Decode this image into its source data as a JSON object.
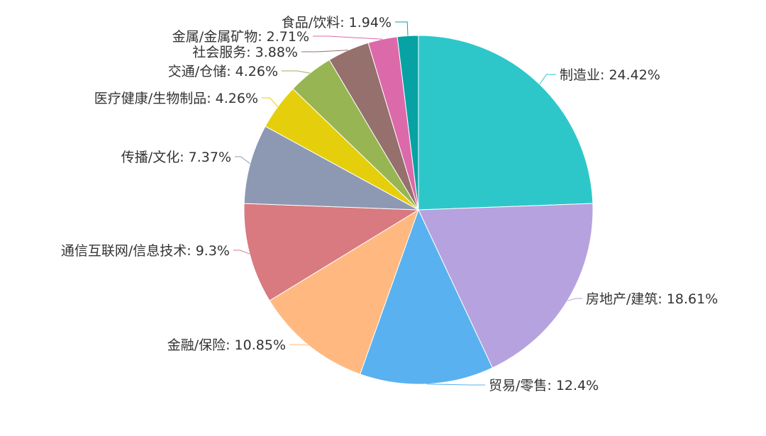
{
  "chart_data": {
    "type": "pie",
    "title": "",
    "slices": [
      {
        "name": "制造业",
        "value": 24.42,
        "label": "制造业: 24.42%",
        "color": "#2ec7c9"
      },
      {
        "name": "房地产/建筑",
        "value": 18.61,
        "label": "房地产/建筑: 18.61%",
        "color": "#b6a2de"
      },
      {
        "name": "贸易/零售",
        "value": 12.4,
        "label": "贸易/零售: 12.4%",
        "color": "#5ab1ef"
      },
      {
        "name": "金融/保险",
        "value": 10.85,
        "label": "金融/保险: 10.85%",
        "color": "#ffb980"
      },
      {
        "name": "通信互联网/信息技术",
        "value": 9.3,
        "label": "通信互联网/信息技术: 9.3%",
        "color": "#d87a80"
      },
      {
        "name": "传播/文化",
        "value": 7.37,
        "label": "传播/文化: 7.37%",
        "color": "#8d98b3"
      },
      {
        "name": "医疗健康/生物制品",
        "value": 4.26,
        "label": "医疗健康/生物制品: 4.26%",
        "color": "#e5cf0d"
      },
      {
        "name": "交通/仓储",
        "value": 4.26,
        "label": "交通/仓储: 4.26%",
        "color": "#97b552"
      },
      {
        "name": "社会服务",
        "value": 3.88,
        "label": "社会服务: 3.88%",
        "color": "#95706d"
      },
      {
        "name": "金属/金属矿物",
        "value": 2.71,
        "label": "金属/金属矿物: 2.71%",
        "color": "#dc69aa"
      },
      {
        "name": "食品/饮料",
        "value": 1.94,
        "label": "食品/饮料: 1.94%",
        "color": "#07a2a4"
      }
    ]
  }
}
